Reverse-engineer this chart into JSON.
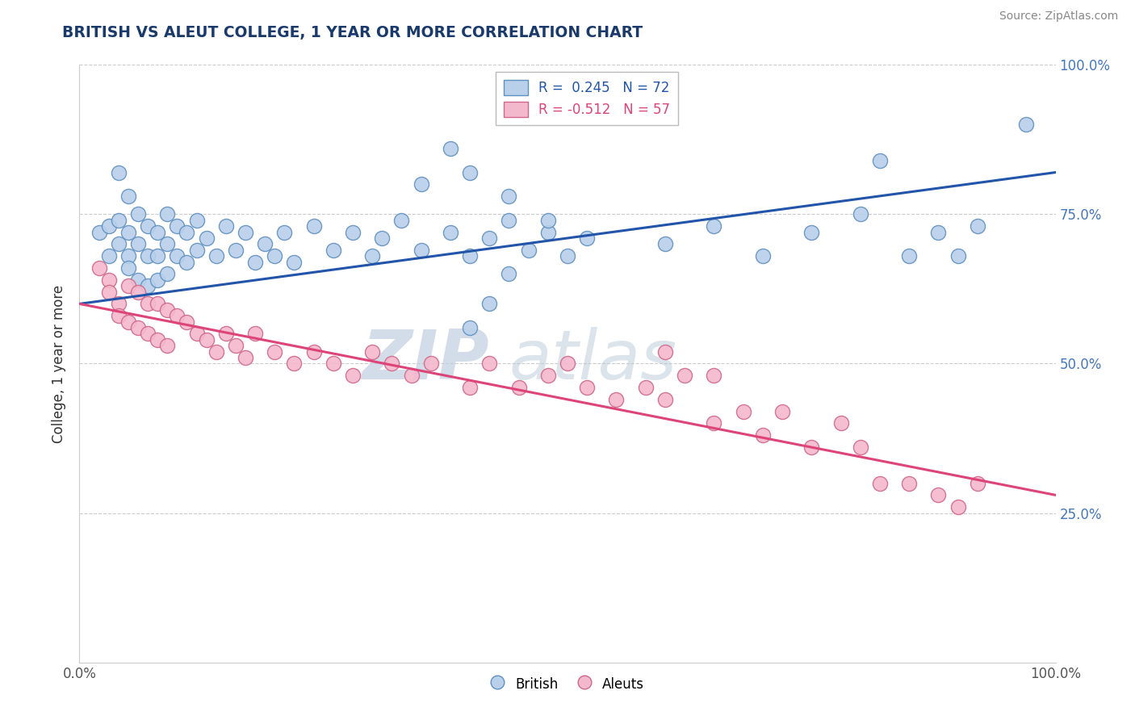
{
  "title": "BRITISH VS ALEUT COLLEGE, 1 YEAR OR MORE CORRELATION CHART",
  "source_text": "Source: ZipAtlas.com",
  "ylabel": "College, 1 year or more",
  "xlim": [
    0.0,
    1.0
  ],
  "ylim": [
    0.0,
    1.0
  ],
  "ytick_positions": [
    0.25,
    0.5,
    0.75,
    1.0
  ],
  "ytick_labels_right": [
    "25.0%",
    "50.0%",
    "75.0%",
    "100.0%"
  ],
  "watermark_zip": "ZIP",
  "watermark_atlas": "atlas",
  "british_color": "#b8d0ea",
  "british_edge": "#6090c0",
  "aleut_color": "#f4b8cc",
  "aleut_edge": "#d06888",
  "british_line_color": "#2255aa",
  "aleut_line_color": "#dd4477",
  "grid_color": "#cccccc",
  "background_color": "#ffffff",
  "british_x": [
    0.02,
    0.03,
    0.03,
    0.04,
    0.04,
    0.04,
    0.05,
    0.05,
    0.05,
    0.05,
    0.06,
    0.06,
    0.06,
    0.07,
    0.07,
    0.07,
    0.08,
    0.08,
    0.08,
    0.09,
    0.09,
    0.09,
    0.1,
    0.1,
    0.11,
    0.11,
    0.12,
    0.12,
    0.13,
    0.14,
    0.15,
    0.16,
    0.17,
    0.18,
    0.19,
    0.2,
    0.21,
    0.22,
    0.24,
    0.26,
    0.28,
    0.3,
    0.31,
    0.33,
    0.35,
    0.38,
    0.4,
    0.42,
    0.44,
    0.46,
    0.48,
    0.5,
    0.52,
    0.4,
    0.42,
    0.44,
    0.6,
    0.65,
    0.7,
    0.75,
    0.8,
    0.85,
    0.88,
    0.9,
    0.92,
    0.35,
    0.38,
    0.4,
    0.44,
    0.48,
    0.82,
    0.97
  ],
  "british_y": [
    0.72,
    0.73,
    0.68,
    0.82,
    0.74,
    0.7,
    0.78,
    0.72,
    0.68,
    0.66,
    0.75,
    0.7,
    0.64,
    0.73,
    0.68,
    0.63,
    0.72,
    0.68,
    0.64,
    0.75,
    0.7,
    0.65,
    0.73,
    0.68,
    0.72,
    0.67,
    0.74,
    0.69,
    0.71,
    0.68,
    0.73,
    0.69,
    0.72,
    0.67,
    0.7,
    0.68,
    0.72,
    0.67,
    0.73,
    0.69,
    0.72,
    0.68,
    0.71,
    0.74,
    0.69,
    0.72,
    0.68,
    0.71,
    0.74,
    0.69,
    0.72,
    0.68,
    0.71,
    0.56,
    0.6,
    0.65,
    0.7,
    0.73,
    0.68,
    0.72,
    0.75,
    0.68,
    0.72,
    0.68,
    0.73,
    0.8,
    0.86,
    0.82,
    0.78,
    0.74,
    0.84,
    0.9
  ],
  "aleut_x": [
    0.02,
    0.03,
    0.03,
    0.04,
    0.04,
    0.05,
    0.05,
    0.06,
    0.06,
    0.07,
    0.07,
    0.08,
    0.08,
    0.09,
    0.09,
    0.1,
    0.11,
    0.12,
    0.13,
    0.14,
    0.15,
    0.16,
    0.17,
    0.18,
    0.2,
    0.22,
    0.24,
    0.26,
    0.28,
    0.3,
    0.32,
    0.34,
    0.36,
    0.4,
    0.42,
    0.45,
    0.48,
    0.5,
    0.52,
    0.55,
    0.58,
    0.6,
    0.62,
    0.65,
    0.68,
    0.7,
    0.72,
    0.75,
    0.78,
    0.8,
    0.82,
    0.85,
    0.88,
    0.9,
    0.92,
    0.6,
    0.65
  ],
  "aleut_y": [
    0.66,
    0.64,
    0.62,
    0.6,
    0.58,
    0.63,
    0.57,
    0.62,
    0.56,
    0.6,
    0.55,
    0.6,
    0.54,
    0.59,
    0.53,
    0.58,
    0.57,
    0.55,
    0.54,
    0.52,
    0.55,
    0.53,
    0.51,
    0.55,
    0.52,
    0.5,
    0.52,
    0.5,
    0.48,
    0.52,
    0.5,
    0.48,
    0.5,
    0.46,
    0.5,
    0.46,
    0.48,
    0.5,
    0.46,
    0.44,
    0.46,
    0.44,
    0.48,
    0.4,
    0.42,
    0.38,
    0.42,
    0.36,
    0.4,
    0.36,
    0.3,
    0.3,
    0.28,
    0.26,
    0.3,
    0.52,
    0.48
  ],
  "british_line_x0": 0.0,
  "british_line_y0": 0.6,
  "british_line_x1": 1.0,
  "british_line_y1": 0.82,
  "aleut_line_x0": 0.0,
  "aleut_line_y0": 0.6,
  "aleut_line_x1": 1.0,
  "aleut_line_y1": 0.28
}
